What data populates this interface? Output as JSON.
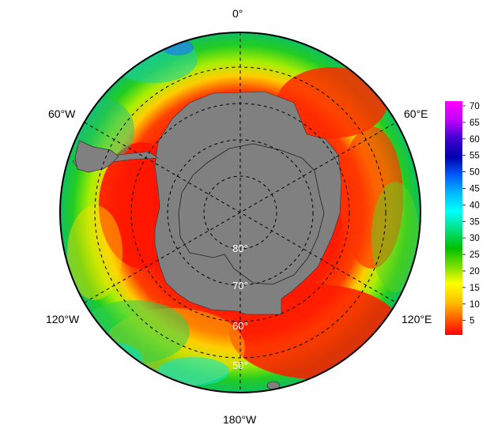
{
  "map": {
    "projection": "south-polar-stereographic",
    "land_color": "#808080",
    "lon_labels": {
      "top": "0°",
      "upper_left": "60°W",
      "upper_right": "60°E",
      "lower_left": "120°W",
      "lower_right": "120°E",
      "bottom": "180°W"
    },
    "lat_labels": [
      "80°",
      "70°",
      "60°",
      "50°"
    ]
  },
  "colorbar": {
    "ticks": [
      "70",
      "65",
      "60",
      "55",
      "50",
      "45",
      "40",
      "35",
      "30",
      "25",
      "20",
      "15",
      "10",
      "5"
    ],
    "colors": [
      "#ff00ff",
      "#b000ff",
      "#5000e0",
      "#0000b0",
      "#0050ff",
      "#00b0ff",
      "#00ffff",
      "#00e080",
      "#00c000",
      "#80e000",
      "#ffff00",
      "#ffd000",
      "#ff8000",
      "#ff0000"
    ]
  }
}
